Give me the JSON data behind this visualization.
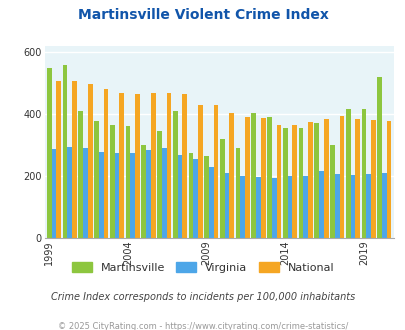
{
  "title": "Martinsville Violent Crime Index",
  "years": [
    1999,
    2000,
    2001,
    2002,
    2003,
    2004,
    2005,
    2006,
    2007,
    2008,
    2009,
    2010,
    2011,
    2012,
    2013,
    2014,
    2015,
    2016,
    2017,
    2018,
    2019,
    2020
  ],
  "martinsville": [
    548,
    560,
    410,
    378,
    365,
    360,
    300,
    345,
    410,
    275,
    265,
    320,
    290,
    405,
    390,
    355,
    355,
    370,
    300,
    415,
    415,
    520
  ],
  "virginia": [
    287,
    295,
    290,
    278,
    275,
    275,
    283,
    290,
    268,
    255,
    228,
    210,
    200,
    195,
    193,
    200,
    200,
    215,
    207,
    202,
    207,
    210
  ],
  "national": [
    507,
    507,
    497,
    480,
    470,
    465,
    470,
    470,
    465,
    430,
    428,
    405,
    390,
    387,
    365,
    365,
    373,
    383,
    393,
    383,
    382,
    378
  ],
  "martinsville_color": "#8dc63f",
  "virginia_color": "#4da6e8",
  "national_color": "#f5a623",
  "bg_color": "#e8f4f8",
  "title_color": "#1155aa",
  "ylim": [
    0,
    620
  ],
  "yticks": [
    0,
    200,
    400,
    600
  ],
  "grid_color": "#ffffff",
  "subtitle": "Crime Index corresponds to incidents per 100,000 inhabitants",
  "footer": "© 2025 CityRating.com - https://www.cityrating.com/crime-statistics/",
  "subtitle_color": "#444444",
  "footer_color": "#999999"
}
